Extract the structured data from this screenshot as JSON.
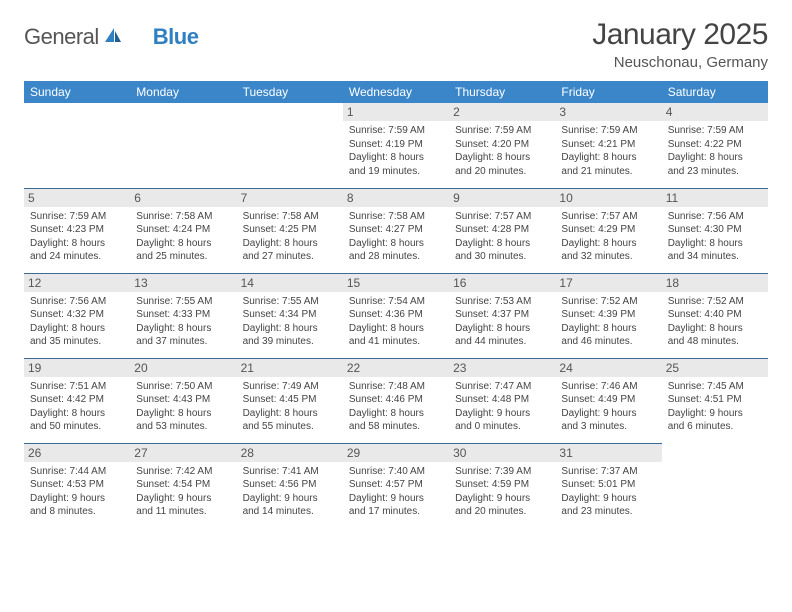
{
  "brand": {
    "word1": "General",
    "word2": "Blue"
  },
  "title": "January 2025",
  "location": "Neuschonau, Germany",
  "colors": {
    "header_bg": "#3a86c8",
    "header_text": "#ffffff",
    "row_border": "#3a6a9a",
    "daynum_bg": "#e9e9e9",
    "logo_gray": "#555555",
    "logo_blue": "#2f7fc1",
    "page_bg": "#ffffff"
  },
  "fonts": {
    "title_size_pt": 22,
    "location_size_pt": 11,
    "weekday_size_pt": 9,
    "daynum_size_pt": 9,
    "info_size_pt": 7.5
  },
  "weekdays": [
    "Sunday",
    "Monday",
    "Tuesday",
    "Wednesday",
    "Thursday",
    "Friday",
    "Saturday"
  ],
  "layout": {
    "columns": 7,
    "rows": 5,
    "first_weekday_index": 3
  },
  "days": [
    {
      "n": 1,
      "sunrise": "7:59 AM",
      "sunset": "4:19 PM",
      "dl_h": 8,
      "dl_m": 19
    },
    {
      "n": 2,
      "sunrise": "7:59 AM",
      "sunset": "4:20 PM",
      "dl_h": 8,
      "dl_m": 20
    },
    {
      "n": 3,
      "sunrise": "7:59 AM",
      "sunset": "4:21 PM",
      "dl_h": 8,
      "dl_m": 21
    },
    {
      "n": 4,
      "sunrise": "7:59 AM",
      "sunset": "4:22 PM",
      "dl_h": 8,
      "dl_m": 23
    },
    {
      "n": 5,
      "sunrise": "7:59 AM",
      "sunset": "4:23 PM",
      "dl_h": 8,
      "dl_m": 24
    },
    {
      "n": 6,
      "sunrise": "7:58 AM",
      "sunset": "4:24 PM",
      "dl_h": 8,
      "dl_m": 25
    },
    {
      "n": 7,
      "sunrise": "7:58 AM",
      "sunset": "4:25 PM",
      "dl_h": 8,
      "dl_m": 27
    },
    {
      "n": 8,
      "sunrise": "7:58 AM",
      "sunset": "4:27 PM",
      "dl_h": 8,
      "dl_m": 28
    },
    {
      "n": 9,
      "sunrise": "7:57 AM",
      "sunset": "4:28 PM",
      "dl_h": 8,
      "dl_m": 30
    },
    {
      "n": 10,
      "sunrise": "7:57 AM",
      "sunset": "4:29 PM",
      "dl_h": 8,
      "dl_m": 32
    },
    {
      "n": 11,
      "sunrise": "7:56 AM",
      "sunset": "4:30 PM",
      "dl_h": 8,
      "dl_m": 34
    },
    {
      "n": 12,
      "sunrise": "7:56 AM",
      "sunset": "4:32 PM",
      "dl_h": 8,
      "dl_m": 35
    },
    {
      "n": 13,
      "sunrise": "7:55 AM",
      "sunset": "4:33 PM",
      "dl_h": 8,
      "dl_m": 37
    },
    {
      "n": 14,
      "sunrise": "7:55 AM",
      "sunset": "4:34 PM",
      "dl_h": 8,
      "dl_m": 39
    },
    {
      "n": 15,
      "sunrise": "7:54 AM",
      "sunset": "4:36 PM",
      "dl_h": 8,
      "dl_m": 41
    },
    {
      "n": 16,
      "sunrise": "7:53 AM",
      "sunset": "4:37 PM",
      "dl_h": 8,
      "dl_m": 44
    },
    {
      "n": 17,
      "sunrise": "7:52 AM",
      "sunset": "4:39 PM",
      "dl_h": 8,
      "dl_m": 46
    },
    {
      "n": 18,
      "sunrise": "7:52 AM",
      "sunset": "4:40 PM",
      "dl_h": 8,
      "dl_m": 48
    },
    {
      "n": 19,
      "sunrise": "7:51 AM",
      "sunset": "4:42 PM",
      "dl_h": 8,
      "dl_m": 50
    },
    {
      "n": 20,
      "sunrise": "7:50 AM",
      "sunset": "4:43 PM",
      "dl_h": 8,
      "dl_m": 53
    },
    {
      "n": 21,
      "sunrise": "7:49 AM",
      "sunset": "4:45 PM",
      "dl_h": 8,
      "dl_m": 55
    },
    {
      "n": 22,
      "sunrise": "7:48 AM",
      "sunset": "4:46 PM",
      "dl_h": 8,
      "dl_m": 58
    },
    {
      "n": 23,
      "sunrise": "7:47 AM",
      "sunset": "4:48 PM",
      "dl_h": 9,
      "dl_m": 0
    },
    {
      "n": 24,
      "sunrise": "7:46 AM",
      "sunset": "4:49 PM",
      "dl_h": 9,
      "dl_m": 3
    },
    {
      "n": 25,
      "sunrise": "7:45 AM",
      "sunset": "4:51 PM",
      "dl_h": 9,
      "dl_m": 6
    },
    {
      "n": 26,
      "sunrise": "7:44 AM",
      "sunset": "4:53 PM",
      "dl_h": 9,
      "dl_m": 8
    },
    {
      "n": 27,
      "sunrise": "7:42 AM",
      "sunset": "4:54 PM",
      "dl_h": 9,
      "dl_m": 11
    },
    {
      "n": 28,
      "sunrise": "7:41 AM",
      "sunset": "4:56 PM",
      "dl_h": 9,
      "dl_m": 14
    },
    {
      "n": 29,
      "sunrise": "7:40 AM",
      "sunset": "4:57 PM",
      "dl_h": 9,
      "dl_m": 17
    },
    {
      "n": 30,
      "sunrise": "7:39 AM",
      "sunset": "4:59 PM",
      "dl_h": 9,
      "dl_m": 20
    },
    {
      "n": 31,
      "sunrise": "7:37 AM",
      "sunset": "5:01 PM",
      "dl_h": 9,
      "dl_m": 23
    }
  ],
  "labels": {
    "sunrise": "Sunrise:",
    "sunset": "Sunset:",
    "daylight": "Daylight:",
    "hours": "hours",
    "and": "and",
    "minutes": "minutes."
  }
}
